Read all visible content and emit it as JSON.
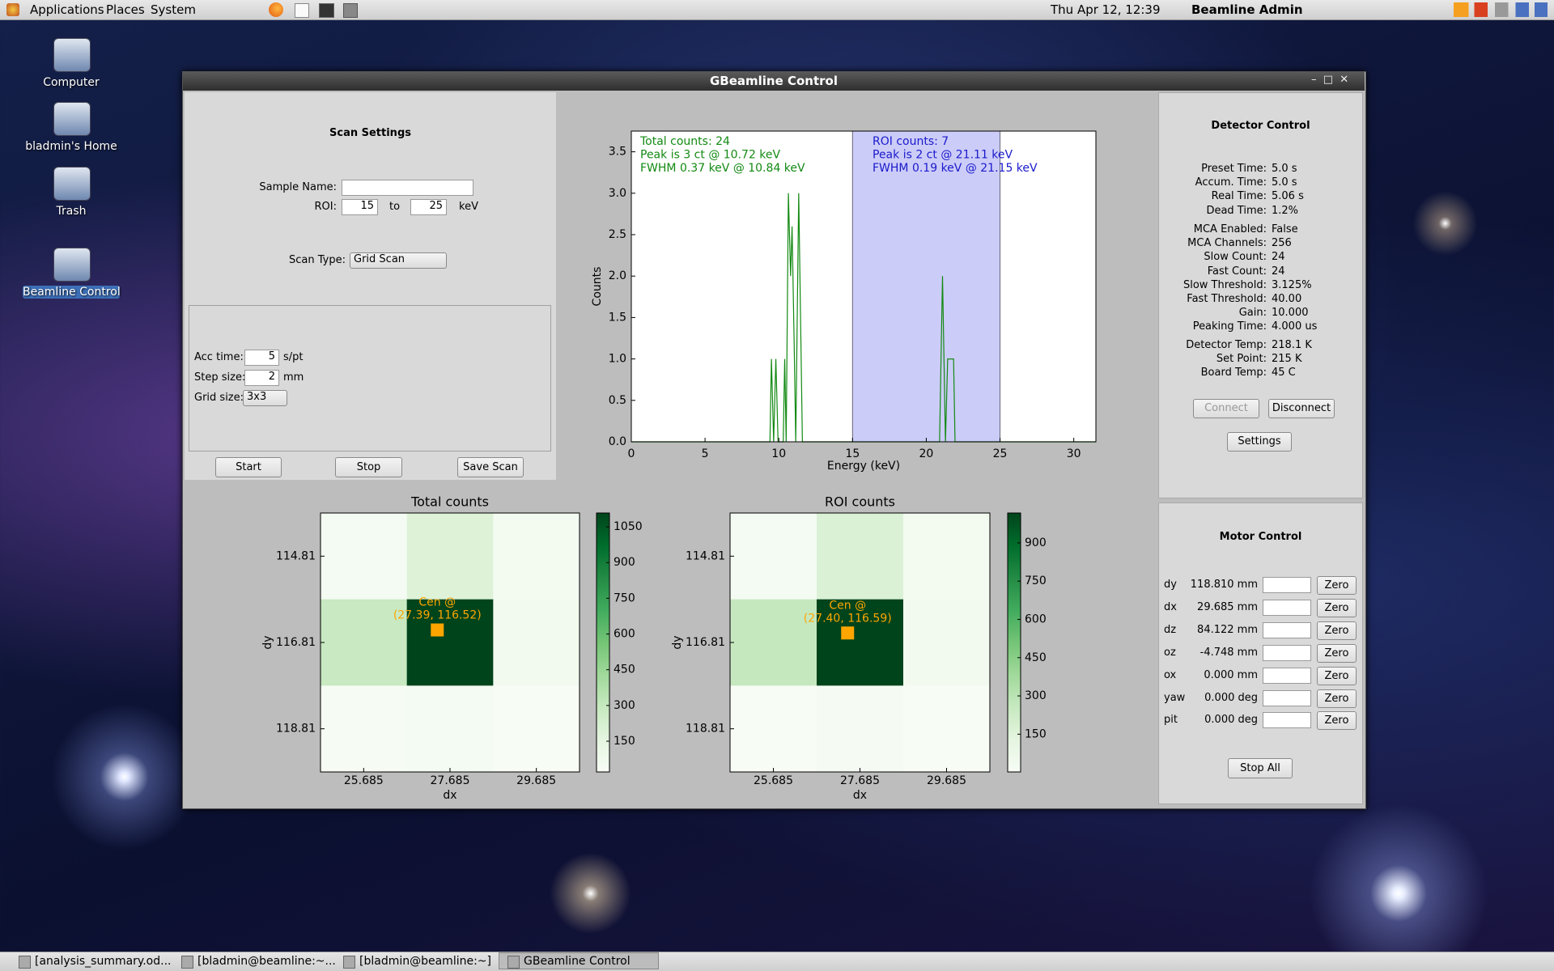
{
  "top_panel": {
    "menus": [
      "Applications",
      "Places",
      "System"
    ],
    "clock": "Thu Apr 12, 12:39",
    "user": "Beamline Admin"
  },
  "desktop_icons": [
    "Computer",
    "bladmin's Home",
    "Trash",
    "Beamline Control"
  ],
  "window": {
    "title": "GBeamline Control"
  },
  "scan_settings": {
    "title": "Scan Settings",
    "sample_name_label": "Sample Name:",
    "roi_label": "ROI:",
    "roi_from": 15,
    "roi_to_label": "to",
    "roi_to": 25,
    "roi_unit": "keV",
    "scan_type_label": "Scan Type:",
    "scan_type": "Grid Scan",
    "acc_time_label": "Acc time:",
    "acc_time": 5,
    "acc_time_unit": "s/pt",
    "step_size_label": "Step size:",
    "step_size": 2,
    "step_size_unit": "mm",
    "grid_size_label": "Grid size:",
    "grid_size": "3x3",
    "buttons": [
      "Start",
      "Stop",
      "Save Scan"
    ]
  },
  "chart_data": [
    {
      "type": "line",
      "xlabel": "Energy (keV)",
      "ylabel": "Counts",
      "xlim": [
        0,
        31.5
      ],
      "ylim": [
        0,
        3.75
      ],
      "xticks": [
        0,
        5,
        10,
        15,
        20,
        25,
        30
      ],
      "yticks": [
        {
          "value": 0,
          "label": "0.0"
        },
        {
          "value": 0.5,
          "label": "0.5"
        },
        {
          "value": 1,
          "label": "1.0"
        },
        {
          "value": 1.5,
          "label": "1.5"
        },
        {
          "value": 2,
          "label": "2.0"
        },
        {
          "value": 2.5,
          "label": "2.5"
        },
        {
          "value": 3,
          "label": "3.0"
        },
        {
          "value": 3.5,
          "label": "3.5"
        }
      ],
      "roi_color": "#ccccf8",
      "series": [
        {
          "color": "#138a13",
          "x": [
            0,
            9.4,
            9.5,
            9.65,
            9.8,
            9.95,
            10.3,
            10.4,
            10.5,
            10.65,
            10.8,
            10.9,
            11.05,
            11.15,
            11.35,
            11.6,
            20.9,
            21.1,
            21.3,
            21.45,
            21.55,
            21.85,
            21.95,
            31.5
          ],
          "values": [
            0,
            0,
            1,
            0,
            1,
            0,
            0,
            1,
            0,
            3,
            2,
            2.6,
            1.1,
            0,
            3,
            0,
            0,
            2,
            0,
            1,
            1,
            1,
            0,
            0
          ]
        }
      ],
      "annotations": [
        {
          "color": "#138a13",
          "lines": [
            "Total counts: 24",
            "Peak is 3 ct @ 10.72 keV",
            "FWHM 0.37 keV @ 10.84 keV"
          ]
        },
        {
          "color": "#1a1acc",
          "lines": [
            "ROI counts: 7",
            "Peak is 2 ct @ 21.11 keV",
            "FWHM 0.19 keV @ 21.15 keV"
          ]
        }
      ]
    },
    {
      "type": "heatmap",
      "title": "Total counts",
      "xlabel": "dx",
      "ylabel": "dy",
      "xlim": [
        24.685,
        30.685
      ],
      "ylim": [
        119.81,
        113.81
      ],
      "xticks": [
        25.685,
        27.685,
        29.685
      ],
      "yticks": [
        114.81,
        116.81,
        118.81
      ],
      "values": [
        [
          40,
          190,
          50
        ],
        [
          290,
          1108,
          60
        ],
        [
          25,
          40,
          21
        ]
      ],
      "clim": [
        21,
        1108
      ],
      "cticks": [
        150,
        300,
        450,
        600,
        750,
        900,
        1050
      ],
      "center": {
        "label": "Cen @",
        "coords_label": "(27.39, 116.52)",
        "x": 27.39,
        "y": 116.52,
        "color": "#ffa500"
      }
    },
    {
      "type": "heatmap",
      "title": "ROI counts",
      "xlabel": "dx",
      "ylabel": "dy",
      "xlim": [
        24.685,
        30.685
      ],
      "ylim": [
        119.81,
        113.81
      ],
      "xticks": [
        25.685,
        27.685,
        29.685
      ],
      "yticks": [
        114.81,
        116.81,
        118.81
      ],
      "values": [
        [
          20,
          170,
          30
        ],
        [
          260,
          1017,
          40
        ],
        [
          5,
          15,
          2
        ]
      ],
      "clim": [
        2,
        1017
      ],
      "cticks": [
        150,
        300,
        450,
        600,
        750,
        900
      ],
      "center": {
        "label": "Cen @",
        "coords_label": "(27.40, 116.59)",
        "x": 27.4,
        "y": 116.59,
        "color": "#ffa500"
      }
    }
  ],
  "detector": {
    "title": "Detector Control",
    "groups": [
      [
        [
          "Preset Time:",
          "5.0 s"
        ],
        [
          "Accum. Time:",
          "5.0 s"
        ],
        [
          "Real Time:",
          "5.06 s"
        ],
        [
          "Dead Time:",
          "1.2%"
        ]
      ],
      [
        [
          "MCA Enabled:",
          "False"
        ],
        [
          "MCA Channels:",
          "256"
        ],
        [
          "Slow Count:",
          "24"
        ],
        [
          "Fast Count:",
          "24"
        ],
        [
          "Slow Threshold:",
          "3.125%"
        ],
        [
          "Fast Threshold:",
          "40.00"
        ],
        [
          "Gain:",
          "10.000"
        ],
        [
          "Peaking Time:",
          "4.000 us"
        ]
      ],
      [
        [
          "Detector Temp:",
          "218.1 K"
        ],
        [
          "Set Point:",
          "215 K"
        ],
        [
          "Board Temp:",
          "45 C"
        ]
      ]
    ],
    "buttons": [
      "Connect",
      "Disconnect",
      "Settings"
    ]
  },
  "motor": {
    "title": "Motor Control",
    "rows": [
      [
        "dy",
        "118.810 mm"
      ],
      [
        "dx",
        "29.685 mm"
      ],
      [
        "dz",
        "84.122 mm"
      ],
      [
        "oz",
        "-4.748 mm"
      ],
      [
        "ox",
        "0.000 mm"
      ],
      [
        "yaw",
        "0.000 deg"
      ],
      [
        "pit",
        "0.000 deg"
      ]
    ],
    "zero_label": "Zero",
    "stop_all": "Stop All"
  },
  "taskbar": [
    "[analysis_summary.od...",
    "[bladmin@beamline:~...",
    "[bladmin@beamline:~]",
    "GBeamline Control"
  ]
}
